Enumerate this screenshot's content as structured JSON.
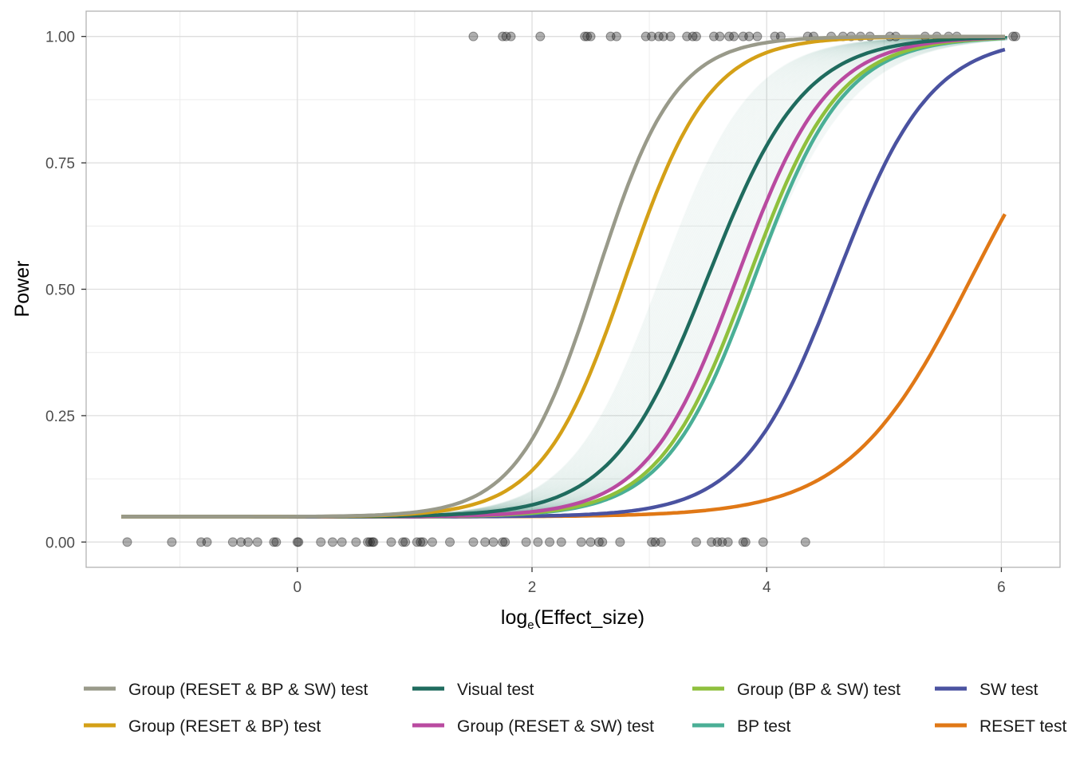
{
  "chart_data": {
    "type": "line",
    "title": "",
    "xlabel": {
      "base": "log",
      "subscript": "e",
      "argument": "Effect_size"
    },
    "ylabel": "Power",
    "xlim": [
      -1.8,
      6.5
    ],
    "ylim": [
      -0.05,
      1.05
    ],
    "x_ticks": [
      0,
      2,
      4,
      6
    ],
    "x_tick_labels": [
      "0",
      "2",
      "4",
      "6"
    ],
    "y_ticks": [
      0,
      0.25,
      0.5,
      0.75,
      1
    ],
    "y_tick_labels": [
      "0.00",
      "0.25",
      "0.50",
      "0.75",
      "1.00"
    ],
    "grid": true,
    "legend_position": "bottom",
    "x_range": [
      -1.5,
      6.05
    ],
    "series": [
      {
        "name": "Group (RESET & BP & SW) test",
        "color": "#999a8a",
        "midpoint": 2.55,
        "slope": 3.0
      },
      {
        "name": "Group (RESET & BP) test",
        "color": "#d4a017",
        "midpoint": 2.8,
        "slope": 2.8
      },
      {
        "name": "Visual test",
        "color": "#1f6b5e",
        "midpoint": 3.5,
        "slope": 2.45,
        "uncertainty_band": true
      },
      {
        "name": "Group (RESET & SW) test",
        "color": "#b94aa0",
        "midpoint": 3.75,
        "slope": 2.6
      },
      {
        "name": "Group (BP & SW) test",
        "color": "#8fc03d",
        "midpoint": 3.85,
        "slope": 2.6
      },
      {
        "name": "BP test",
        "color": "#4aaf96",
        "midpoint": 3.9,
        "slope": 2.6
      },
      {
        "name": "SW test",
        "color": "#4a52a0",
        "midpoint": 4.6,
        "slope": 2.5
      },
      {
        "name": "RESET test",
        "color": "#e07816",
        "midpoint": 5.75,
        "slope": 1.9,
        "x_end": 6.05
      }
    ],
    "observations": {
      "detected_y": 1,
      "detected_x": [
        1.5,
        1.75,
        1.78,
        1.82,
        2.07,
        2.45,
        2.47,
        2.5,
        2.67,
        2.72,
        2.97,
        3.02,
        3.08,
        3.12,
        3.18,
        3.32,
        3.37,
        3.4,
        3.55,
        3.6,
        3.68,
        3.72,
        3.8,
        3.85,
        3.92,
        4.07,
        4.12,
        4.35,
        4.4,
        4.55,
        4.65,
        4.72,
        4.8,
        4.88,
        5.05,
        5.1,
        5.35,
        5.45,
        5.55,
        5.62,
        6.1,
        6.12
      ],
      "not_detected_y": 0,
      "not_detected_x": [
        -1.45,
        -1.07,
        -0.82,
        -0.77,
        -0.55,
        -0.48,
        -0.42,
        -0.34,
        -0.2,
        -0.18,
        0,
        0.01,
        0.2,
        0.3,
        0.38,
        0.5,
        0.6,
        0.62,
        0.64,
        0.65,
        0.8,
        0.9,
        0.92,
        1.02,
        1.05,
        1.07,
        1.15,
        1.3,
        1.5,
        1.6,
        1.67,
        1.75,
        1.77,
        1.95,
        2.05,
        2.15,
        2.25,
        2.42,
        2.5,
        2.57,
        2.6,
        2.75,
        3.02,
        3.05,
        3.1,
        3.4,
        3.53,
        3.58,
        3.62,
        3.67,
        3.8,
        3.82,
        3.97,
        4.33
      ]
    }
  }
}
